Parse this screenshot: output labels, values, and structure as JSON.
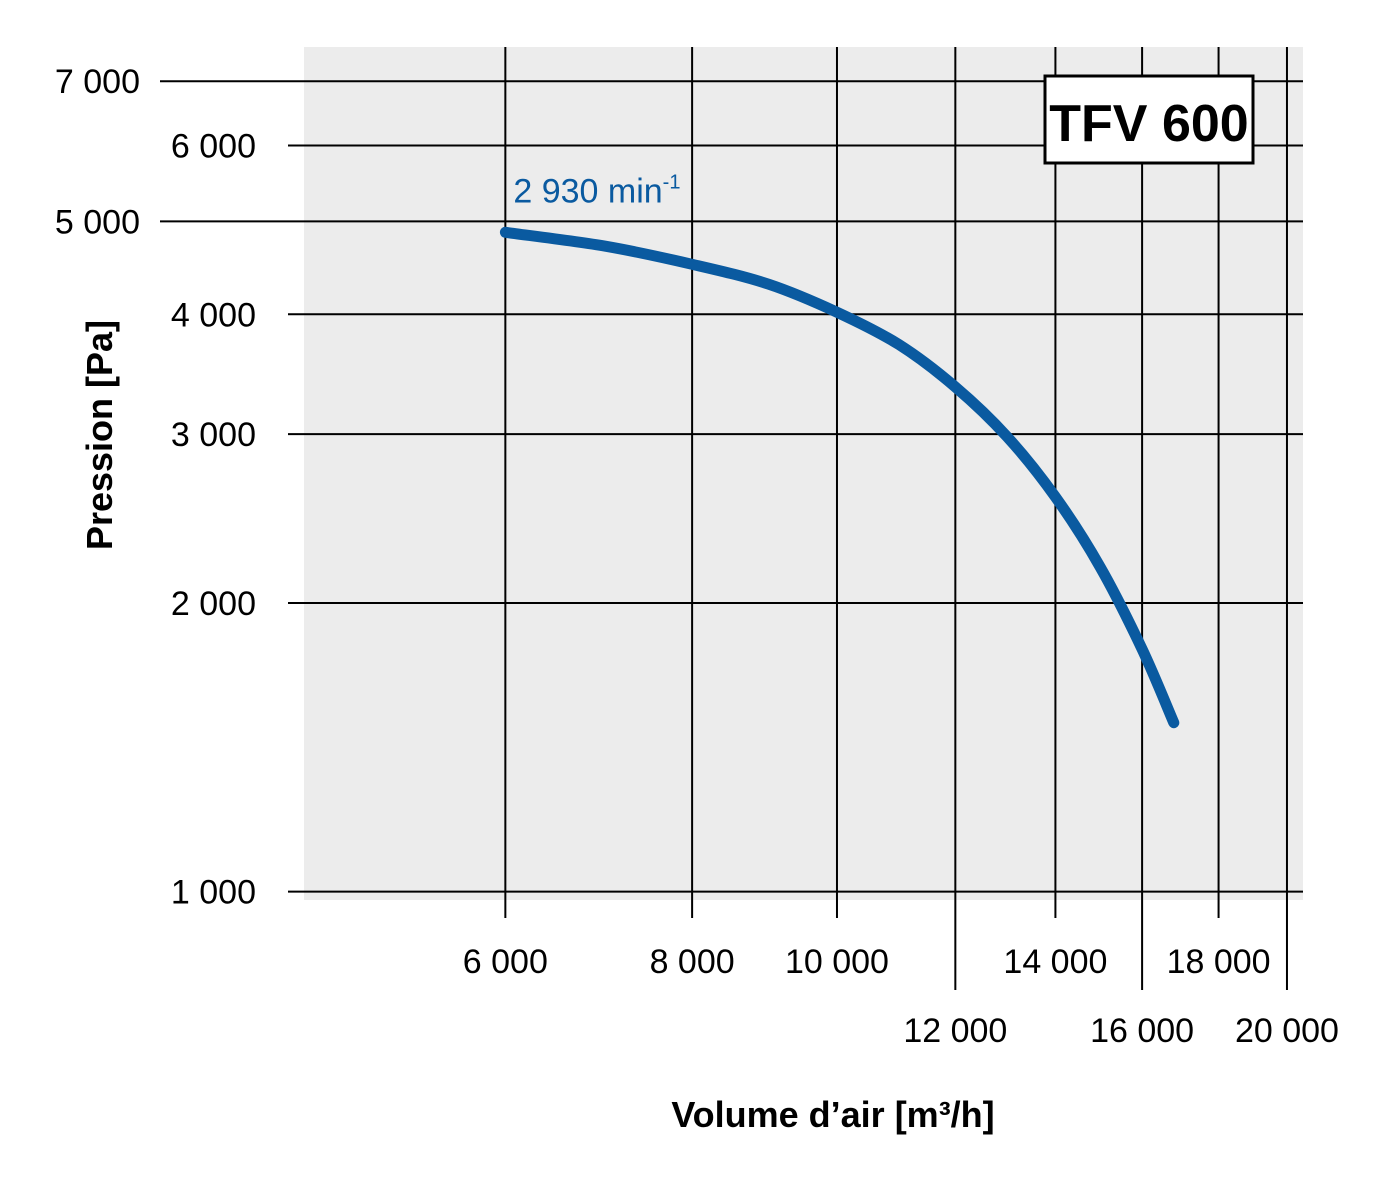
{
  "chart_data": {
    "type": "line",
    "badge": "TFV 600",
    "xlabel": "Volume d’air [m³/h]",
    "ylabel": "Pression [Pa]",
    "x_scale": "log",
    "y_scale": "log",
    "xlim": [
      4400,
      20500
    ],
    "ylim": [
      980,
      7600
    ],
    "grid": true,
    "x_ticks_upper": [
      {
        "value": 6000,
        "label": "6 000"
      },
      {
        "value": 8000,
        "label": "8 000"
      },
      {
        "value": 10000,
        "label": "10 000"
      },
      {
        "value": 14000,
        "label": "14 000"
      },
      {
        "value": 18000,
        "label": "18 000"
      }
    ],
    "x_ticks_lower": [
      {
        "value": 12000,
        "label": "12 000"
      },
      {
        "value": 16000,
        "label": "16 000"
      },
      {
        "value": 20000,
        "label": "20 000"
      }
    ],
    "y_ticks": [
      {
        "value": 1000,
        "label": "1 000"
      },
      {
        "value": 2000,
        "label": "2 000"
      },
      {
        "value": 3000,
        "label": "3 000"
      },
      {
        "value": 4000,
        "label": "4 000"
      },
      {
        "value": 5000,
        "label": "5 000"
      },
      {
        "value": 6000,
        "label": "6 000"
      },
      {
        "value": 7000,
        "label": "7 000"
      }
    ],
    "series": [
      {
        "name": "2 930 min",
        "name_superscript": "-1",
        "color": "#0a5aa0",
        "x": [
          6000,
          7000,
          8000,
          9000,
          10000,
          11000,
          12000,
          13000,
          14000,
          15000,
          16000,
          16800
        ],
        "y": [
          4870,
          4710,
          4510,
          4300,
          4020,
          3720,
          3360,
          2980,
          2580,
          2180,
          1790,
          1500
        ]
      }
    ]
  }
}
